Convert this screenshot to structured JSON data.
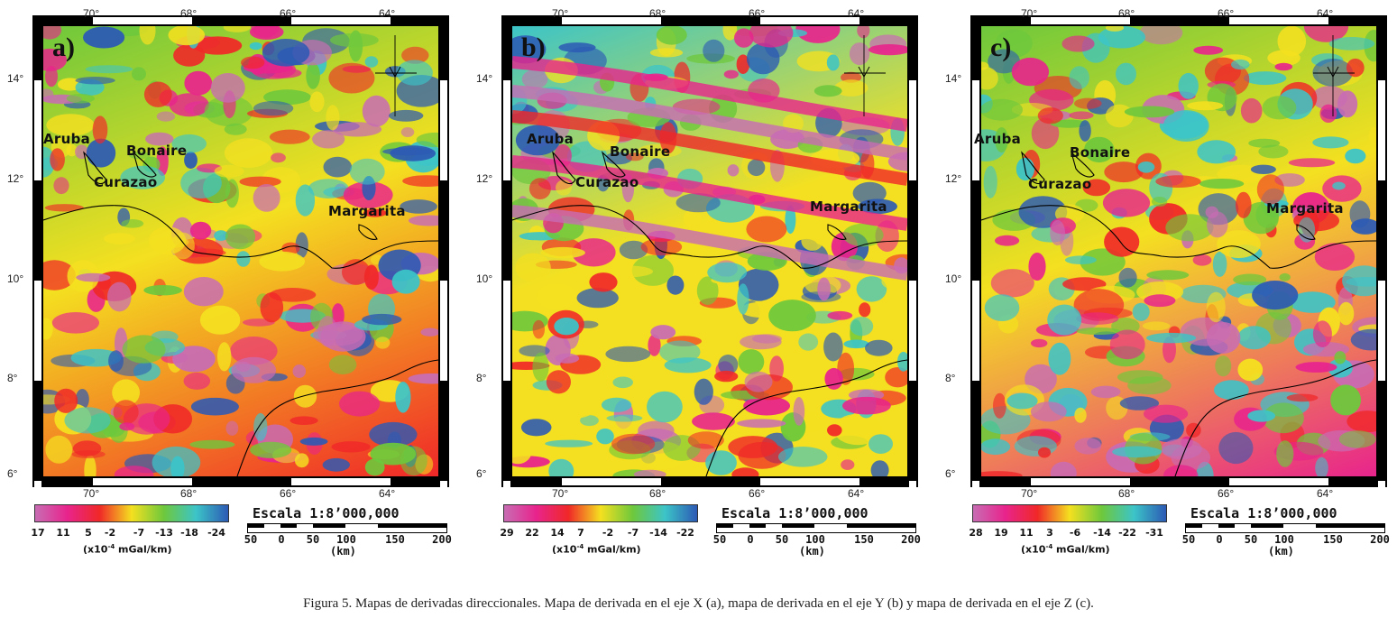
{
  "panels": [
    {
      "letter": "a)",
      "lon_ticks": [
        "70°",
        "68°",
        "66°",
        "64°"
      ],
      "lat_ticks": [
        "14°",
        "12°",
        "10°",
        "8°",
        "6°"
      ],
      "islands": {
        "aruba": "Aruba",
        "bonaire": "Bonaire",
        "curazao": "Curazao",
        "margarita": "Margarita"
      },
      "colorbar": {
        "labels": [
          "17",
          "11",
          "5",
          "-2",
          "-7",
          "-13",
          "-18",
          "-24"
        ],
        "unit_prefix": "(x10",
        "unit_exp": "-4",
        "unit_suffix": " mGal/km)"
      },
      "scale": {
        "title": "Escala 1:8’000,000",
        "labels": [
          "50",
          "0",
          "50",
          "100",
          "150",
          "200"
        ],
        "unit": "(km)"
      }
    },
    {
      "letter": "b)",
      "lon_ticks": [
        "70°",
        "68°",
        "66°",
        "64°"
      ],
      "lat_ticks": [
        "14°",
        "12°",
        "10°",
        "8°",
        "6°"
      ],
      "islands": {
        "aruba": "Aruba",
        "bonaire": "Bonaire",
        "curazao": "Curazao",
        "margarita": "Margarita"
      },
      "colorbar": {
        "labels": [
          "29",
          "22",
          "14",
          "7",
          "-2",
          "-7",
          "-14",
          "-22"
        ],
        "unit_prefix": "(x10",
        "unit_exp": "-4",
        "unit_suffix": " mGal/km)"
      },
      "scale": {
        "title": "Escala 1:8’000,000",
        "labels": [
          "50",
          "0",
          "50",
          "100",
          "150",
          "200"
        ],
        "unit": "(km)"
      }
    },
    {
      "letter": "c)",
      "lon_ticks": [
        "70°",
        "68°",
        "66°",
        "64°"
      ],
      "lat_ticks": [
        "14°",
        "12°",
        "10°",
        "8°",
        "6°"
      ],
      "islands": {
        "aruba": "Aruba",
        "bonaire": "Bonaire",
        "curazao": "Curazao",
        "margarita": "Margarita"
      },
      "colorbar": {
        "labels": [
          "28",
          "19",
          "11",
          "3",
          "-6",
          "-14",
          "-22",
          "-31"
        ],
        "unit_prefix": "(x10",
        "unit_exp": "-4",
        "unit_suffix": " mGal/km)"
      },
      "scale": {
        "title": "Escala 1:8’000,000",
        "labels": [
          "50",
          "0",
          "50",
          "100",
          "150",
          "200"
        ],
        "unit": "(km)"
      }
    }
  ],
  "colors": {
    "palette": [
      "#c86cb4",
      "#e8248c",
      "#f02828",
      "#f4e020",
      "#6ec83c",
      "#3cc4c8",
      "#2c5ab4"
    ]
  },
  "caption": "Figura 5. Mapas de derivadas direccionales. Mapa de derivada en el eje X (a), mapa de derivada en el eje Y (b) y mapa de derivada en el eje Z (c)."
}
